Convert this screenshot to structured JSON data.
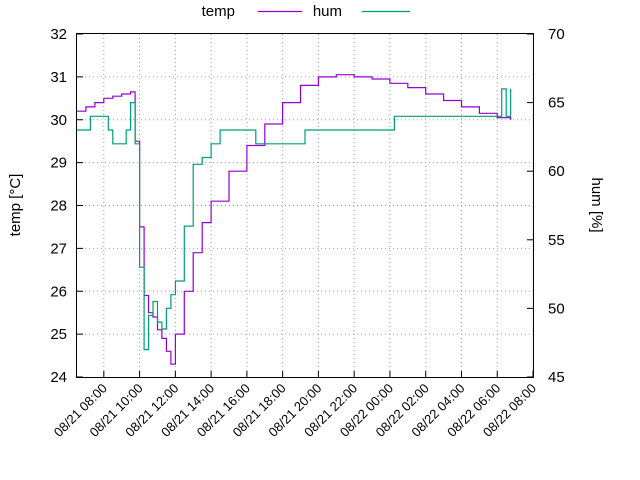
{
  "chart_data": {
    "type": "line",
    "grid": true,
    "legend_position": "top-center",
    "ylabel": "temp [°C]",
    "y2label": "hum [%]",
    "ylim": [
      24,
      32
    ],
    "y2lim": [
      45,
      70
    ],
    "yticks": [
      24,
      25,
      26,
      27,
      28,
      29,
      30,
      31,
      32
    ],
    "y2ticks": [
      45,
      50,
      55,
      60,
      65,
      70
    ],
    "xlim": [
      "08/21 06:30",
      "08/22 08:00"
    ],
    "xtick_labels": [
      "08/21 08:00",
      "08/21 10:00",
      "08/21 12:00",
      "08/21 14:00",
      "08/21 16:00",
      "08/21 18:00",
      "08/21 20:00",
      "08/21 22:00",
      "08/22 00:00",
      "08/22 02:00",
      "08/22 04:00",
      "08/22 06:00",
      "08/22 08:00"
    ],
    "series": [
      {
        "name": "temp",
        "axis": "left",
        "color": "#9400d3",
        "points": [
          [
            "08/21 06:30",
            30.2
          ],
          [
            "08/21 07:00",
            30.3
          ],
          [
            "08/21 07:30",
            30.4
          ],
          [
            "08/21 08:00",
            30.5
          ],
          [
            "08/21 08:30",
            30.55
          ],
          [
            "08/21 09:00",
            30.6
          ],
          [
            "08/21 09:15",
            30.6
          ],
          [
            "08/21 09:30",
            30.65
          ],
          [
            "08/21 09:45",
            29.5
          ],
          [
            "08/21 10:00",
            27.5
          ],
          [
            "08/21 10:15",
            25.9
          ],
          [
            "08/21 10:30",
            25.5
          ],
          [
            "08/21 10:45",
            25.4
          ],
          [
            "08/21 11:00",
            25.1
          ],
          [
            "08/21 11:15",
            24.9
          ],
          [
            "08/21 11:30",
            24.6
          ],
          [
            "08/21 11:45",
            24.3
          ],
          [
            "08/21 12:00",
            25.0
          ],
          [
            "08/21 12:30",
            26.0
          ],
          [
            "08/21 13:00",
            26.9
          ],
          [
            "08/21 13:30",
            27.6
          ],
          [
            "08/21 14:00",
            28.1
          ],
          [
            "08/21 15:00",
            28.8
          ],
          [
            "08/21 16:00",
            29.4
          ],
          [
            "08/21 17:00",
            29.9
          ],
          [
            "08/21 18:00",
            30.4
          ],
          [
            "08/21 19:00",
            30.8
          ],
          [
            "08/21 20:00",
            31.0
          ],
          [
            "08/21 21:00",
            31.05
          ],
          [
            "08/21 22:00",
            31.0
          ],
          [
            "08/21 23:00",
            30.95
          ],
          [
            "08/22 00:00",
            30.85
          ],
          [
            "08/22 01:00",
            30.75
          ],
          [
            "08/22 02:00",
            30.6
          ],
          [
            "08/22 03:00",
            30.45
          ],
          [
            "08/22 04:00",
            30.3
          ],
          [
            "08/22 05:00",
            30.15
          ],
          [
            "08/22 06:00",
            30.05
          ],
          [
            "08/22 06:45",
            30.0
          ]
        ]
      },
      {
        "name": "hum",
        "axis": "right",
        "color": "#009e73",
        "points": [
          [
            "08/21 06:30",
            63.0
          ],
          [
            "08/21 07:00",
            63.0
          ],
          [
            "08/21 07:15",
            64.0
          ],
          [
            "08/21 08:00",
            64.0
          ],
          [
            "08/21 08:15",
            63.0
          ],
          [
            "08/21 08:30",
            62.0
          ],
          [
            "08/21 09:00",
            62.0
          ],
          [
            "08/21 09:15",
            63.0
          ],
          [
            "08/21 09:30",
            65.0
          ],
          [
            "08/21 09:45",
            62.0
          ],
          [
            "08/21 10:00",
            53.0
          ],
          [
            "08/21 10:15",
            47.0
          ],
          [
            "08/21 10:30",
            49.5
          ],
          [
            "08/21 10:45",
            50.5
          ],
          [
            "08/21 11:00",
            49.0
          ],
          [
            "08/21 11:15",
            48.5
          ],
          [
            "08/21 11:30",
            50.0
          ],
          [
            "08/21 11:45",
            51.0
          ],
          [
            "08/21 12:00",
            52.0
          ],
          [
            "08/21 12:30",
            56.0
          ],
          [
            "08/21 13:00",
            60.5
          ],
          [
            "08/21 13:30",
            61.0
          ],
          [
            "08/21 14:00",
            62.0
          ],
          [
            "08/21 14:30",
            63.0
          ],
          [
            "08/21 15:00",
            63.0
          ],
          [
            "08/21 16:00",
            63.0
          ],
          [
            "08/21 16:30",
            62.0
          ],
          [
            "08/21 17:00",
            62.0
          ],
          [
            "08/21 18:00",
            62.0
          ],
          [
            "08/21 19:00",
            62.0
          ],
          [
            "08/21 19:15",
            63.0
          ],
          [
            "08/21 20:00",
            63.0
          ],
          [
            "08/21 21:00",
            63.0
          ],
          [
            "08/21 22:00",
            63.0
          ],
          [
            "08/21 23:00",
            63.0
          ],
          [
            "08/22 00:00",
            63.0
          ],
          [
            "08/22 00:15",
            64.0
          ],
          [
            "08/22 01:00",
            64.0
          ],
          [
            "08/22 02:00",
            64.0
          ],
          [
            "08/22 03:00",
            64.0
          ],
          [
            "08/22 04:00",
            64.0
          ],
          [
            "08/22 05:00",
            64.0
          ],
          [
            "08/22 06:00",
            64.0
          ],
          [
            "08/22 06:15",
            66.0
          ],
          [
            "08/22 06:30",
            64.0
          ],
          [
            "08/22 06:45",
            66.0
          ]
        ]
      }
    ]
  }
}
